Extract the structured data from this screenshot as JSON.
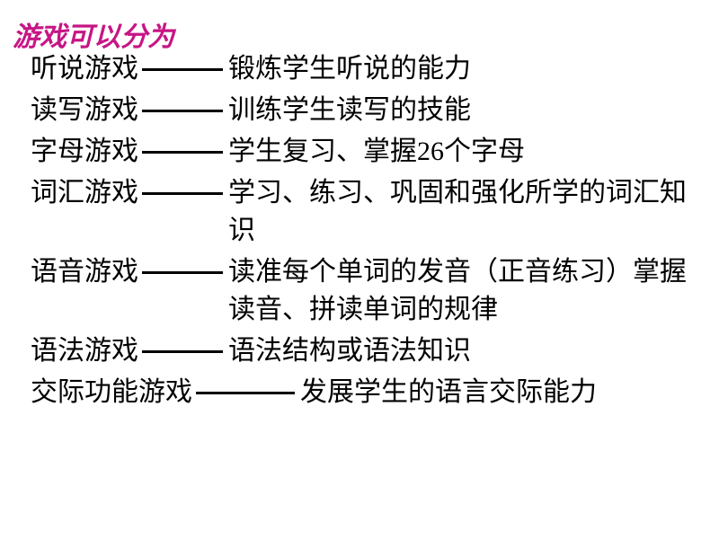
{
  "title": "游戏可以分为",
  "title_color": "#c71585",
  "text_color": "#000000",
  "background_color": "#ffffff",
  "font_size": 30,
  "label_width_normal": 122,
  "label_width_wide": 182,
  "line_width_short": 90,
  "line_width_long": 110,
  "items": [
    {
      "label": "听说游戏",
      "desc": "锻炼学生听说的能力",
      "line": "short"
    },
    {
      "label": "读写游戏",
      "desc": "训练学生读写的技能",
      "line": "short"
    },
    {
      "label": "字母游戏",
      "desc": "学生复习、掌握26个字母",
      "line": "short"
    },
    {
      "label": "词汇游戏",
      "desc": "学习、练习、巩固和强化所学的词汇知识",
      "line": "short"
    },
    {
      "label": "语音游戏",
      "desc": "读准每个单词的发音（正音练习）掌握读音、拼读单词的规律",
      "line": "short"
    },
    {
      "label": "语法游戏",
      "desc": "语法结构或语法知识",
      "line": "short"
    },
    {
      "label": "交际功能游戏",
      "desc": "发展学生的语言交际能力",
      "line": "long"
    }
  ]
}
